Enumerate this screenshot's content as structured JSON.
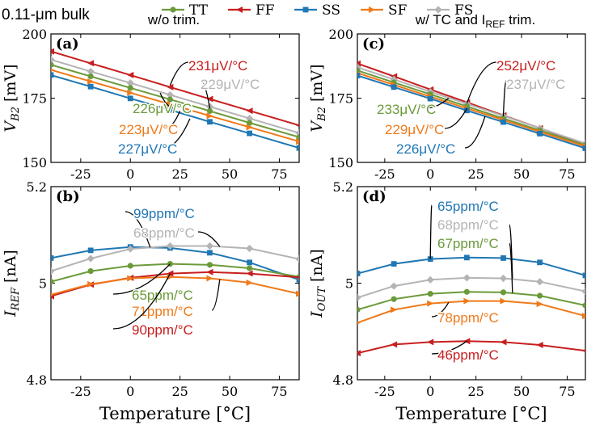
{
  "figure": {
    "process_label": "0.11-μm bulk",
    "legend": [
      {
        "name": "TT",
        "color": "#6b9a3a",
        "marker": "circle"
      },
      {
        "name": "FF",
        "color": "#c81e1e",
        "marker": "triangle-left"
      },
      {
        "name": "SS",
        "color": "#1f77b4",
        "marker": "square"
      },
      {
        "name": "SF",
        "color": "#ef7a1a",
        "marker": "triangle-right"
      },
      {
        "name": "FS",
        "color": "#b4b4b4",
        "marker": "diamond"
      }
    ]
  },
  "chart_data": [
    {
      "id": "a",
      "type": "line",
      "panel_label": "(a)",
      "title": "w/o trim.",
      "xlabel": "",
      "ylabel_main": "V",
      "ylabel_sub": "B2",
      "ylabel_unit": " [mV]",
      "xlim": [
        -40,
        85
      ],
      "ylim": [
        150,
        200
      ],
      "xticks": [
        -25,
        0,
        25,
        50,
        75
      ],
      "yticks": [
        150,
        175,
        200
      ],
      "x": [
        -40,
        -20,
        0,
        20,
        40,
        60,
        85
      ],
      "series": [
        {
          "name": "FF",
          "values": [
            193.2,
            188.6,
            184.0,
            179.3,
            174.7,
            170.1,
            164.4
          ]
        },
        {
          "name": "FS",
          "values": [
            190.0,
            185.4,
            180.9,
            176.3,
            171.7,
            167.1,
            161.4
          ]
        },
        {
          "name": "TT",
          "values": [
            188.0,
            183.5,
            179.0,
            174.5,
            170.0,
            165.4,
            159.8
          ]
        },
        {
          "name": "SF",
          "values": [
            186.0,
            181.5,
            177.1,
            172.6,
            168.1,
            163.7,
            158.1
          ]
        },
        {
          "name": "SS",
          "values": [
            184.0,
            179.5,
            174.9,
            170.4,
            165.8,
            161.3,
            155.6
          ]
        }
      ],
      "annotations": [
        {
          "series": "FF",
          "text": "231μV/°C"
        },
        {
          "series": "FS",
          "text": "229μV/°C"
        },
        {
          "series": "TT",
          "text": "226μV/°C"
        },
        {
          "series": "SF",
          "text": "223μV/°C"
        },
        {
          "series": "SS",
          "text": "227μV/°C"
        }
      ]
    },
    {
      "id": "c",
      "type": "line",
      "panel_label": "(c)",
      "title": "w/ TC and I",
      "title_sub": "REF",
      "title_tail": " trim.",
      "xlabel": "",
      "ylabel_main": "V",
      "ylabel_sub": "B2",
      "ylabel_unit": " [mV]",
      "xlim": [
        -40,
        85
      ],
      "ylim": [
        150,
        200
      ],
      "xticks": [
        -25,
        0,
        25,
        50,
        75
      ],
      "yticks": [
        150,
        175,
        200
      ],
      "x": [
        -40,
        -20,
        0,
        20,
        40,
        60,
        85
      ],
      "series": [
        {
          "name": "FF",
          "values": [
            188.5,
            183.5,
            178.4,
            173.4,
            168.3,
            163.3,
            157.0
          ]
        },
        {
          "name": "FS",
          "values": [
            187.0,
            182.3,
            177.5,
            172.8,
            168.1,
            163.3,
            157.4
          ]
        },
        {
          "name": "TT",
          "values": [
            185.8,
            181.1,
            176.5,
            171.8,
            167.1,
            162.5,
            156.7
          ]
        },
        {
          "name": "SF",
          "values": [
            184.8,
            180.2,
            175.6,
            171.0,
            166.5,
            161.9,
            156.2
          ]
        },
        {
          "name": "SS",
          "values": [
            183.8,
            179.3,
            174.8,
            170.2,
            165.7,
            161.2,
            155.5
          ]
        }
      ],
      "annotations": [
        {
          "series": "FF",
          "text": "252μV/°C"
        },
        {
          "series": "FS",
          "text": "237μV/°C"
        },
        {
          "series": "TT",
          "text": "233μV/°C"
        },
        {
          "series": "SF",
          "text": "229μV/°C"
        },
        {
          "series": "SS",
          "text": "226μV/°C"
        }
      ]
    },
    {
      "id": "b",
      "type": "line",
      "panel_label": "(b)",
      "title": "",
      "xlabel": "Temperature [°C]",
      "ylabel_main": "I",
      "ylabel_sub": "REF",
      "ylabel_unit": " [nA]",
      "xlim": [
        -40,
        85
      ],
      "ylim": [
        4.8,
        5.2
      ],
      "xticks": [
        -25,
        0,
        25,
        50,
        75
      ],
      "yticks": [
        4.8,
        5,
        5.2
      ],
      "x": [
        -40,
        -20,
        0,
        20,
        40,
        60,
        85
      ],
      "series": [
        {
          "name": "SS",
          "values": [
            5.052,
            5.068,
            5.075,
            5.073,
            5.063,
            5.043,
            5.007
          ]
        },
        {
          "name": "FS",
          "values": [
            5.025,
            5.051,
            5.071,
            5.077,
            5.077,
            5.072,
            5.05
          ]
        },
        {
          "name": "TT",
          "values": [
            5.003,
            5.025,
            5.036,
            5.04,
            5.038,
            5.031,
            5.013
          ]
        },
        {
          "name": "FF",
          "values": [
            4.973,
            4.997,
            5.011,
            5.02,
            5.023,
            5.02,
            5.012
          ]
        },
        {
          "name": "SF",
          "values": [
            4.976,
            4.998,
            5.01,
            5.013,
            5.01,
            5.001,
            4.978
          ]
        }
      ],
      "annotations": [
        {
          "series": "SS",
          "text": "99ppm/°C"
        },
        {
          "series": "FS",
          "text": "68ppm/°C"
        },
        {
          "series": "TT",
          "text": "65ppm/°C"
        },
        {
          "series": "SF",
          "text": "71ppm/°C"
        },
        {
          "series": "FF",
          "text": "90ppm/°C"
        }
      ]
    },
    {
      "id": "d",
      "type": "line",
      "panel_label": "(d)",
      "title": "",
      "xlabel": "Temperature [°C]",
      "ylabel_main": "I",
      "ylabel_sub": "OUT",
      "ylabel_unit": " [nA]",
      "xlim": [
        -40,
        85
      ],
      "ylim": [
        4.8,
        5.2
      ],
      "xticks": [
        -25,
        0,
        25,
        50,
        75
      ],
      "yticks": [
        4.8,
        5,
        5.2
      ],
      "x": [
        -40,
        -20,
        0,
        20,
        40,
        60,
        85
      ],
      "series": [
        {
          "name": "SS",
          "values": [
            5.02,
            5.04,
            5.05,
            5.053,
            5.052,
            5.043,
            5.016
          ]
        },
        {
          "name": "FS",
          "values": [
            4.97,
            4.994,
            5.007,
            5.011,
            5.01,
            5.003,
            4.983
          ]
        },
        {
          "name": "TT",
          "values": [
            4.945,
            4.967,
            4.978,
            4.982,
            4.981,
            4.974,
            4.954
          ]
        },
        {
          "name": "SF",
          "values": [
            4.918,
            4.945,
            4.958,
            4.963,
            4.963,
            4.957,
            4.932
          ]
        },
        {
          "name": "FF",
          "values": [
            4.855,
            4.873,
            4.878,
            4.88,
            4.878,
            4.872,
            4.86
          ]
        }
      ],
      "annotations": [
        {
          "series": "SS",
          "text": "65ppm/°C"
        },
        {
          "series": "FS",
          "text": "68ppm/°C"
        },
        {
          "series": "TT",
          "text": "67ppm/°C"
        },
        {
          "series": "SF",
          "text": "78ppm/°C"
        },
        {
          "series": "FF",
          "text": "46ppm/°C"
        }
      ]
    }
  ]
}
